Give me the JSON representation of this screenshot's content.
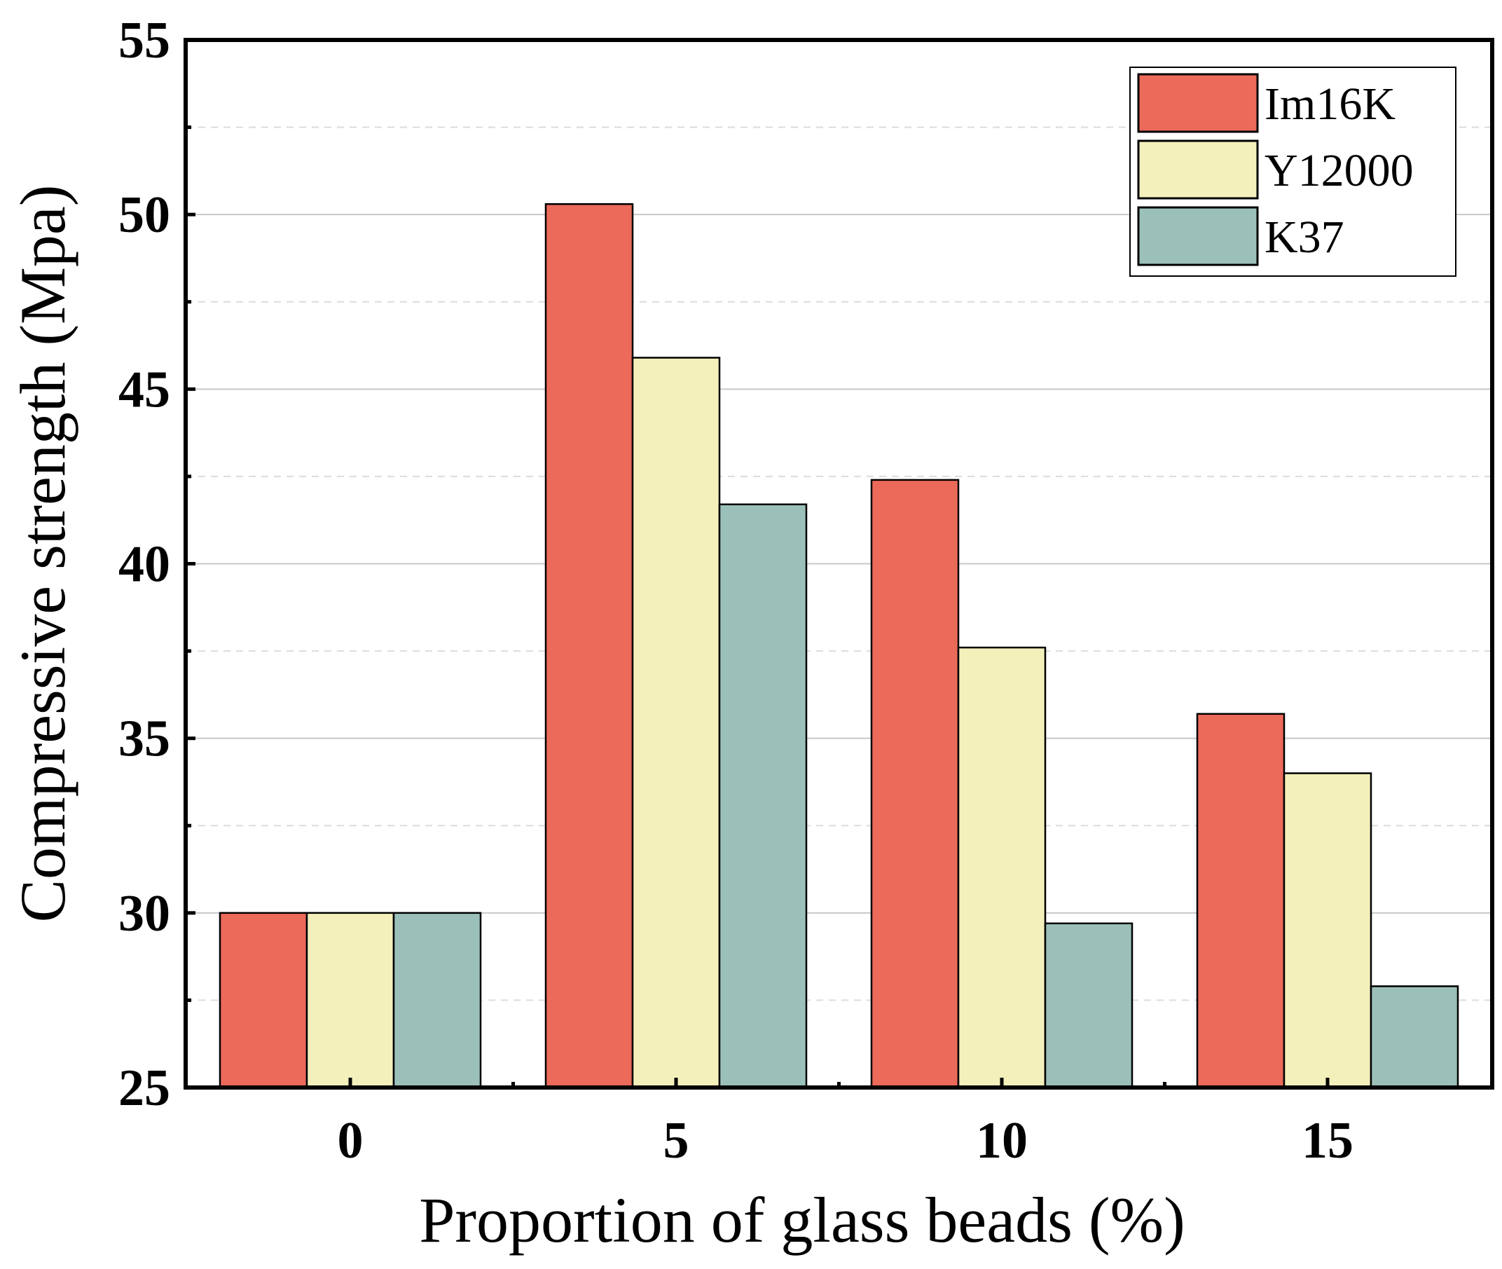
{
  "chart_data": {
    "type": "bar",
    "title": "",
    "xlabel": "Proportion of glass beads (%)",
    "ylabel": "Compressive strength (Mpa)",
    "categories": [
      "0",
      "5",
      "10",
      "15"
    ],
    "series": [
      {
        "name": "Im16K",
        "color": "#eb6a5a",
        "values": [
          30.0,
          50.3,
          42.4,
          35.7
        ]
      },
      {
        "name": "Y12000",
        "color": "#f3f0bc",
        "values": [
          30.0,
          45.9,
          37.6,
          34.0
        ]
      },
      {
        "name": "K37",
        "color": "#9bc0b9",
        "values": [
          30.0,
          41.7,
          29.7,
          27.9
        ]
      }
    ],
    "ylim": [
      25,
      55
    ],
    "yticks": [
      25,
      30,
      35,
      40,
      45,
      50,
      55
    ],
    "grid": true,
    "legend_position": "top-right"
  }
}
